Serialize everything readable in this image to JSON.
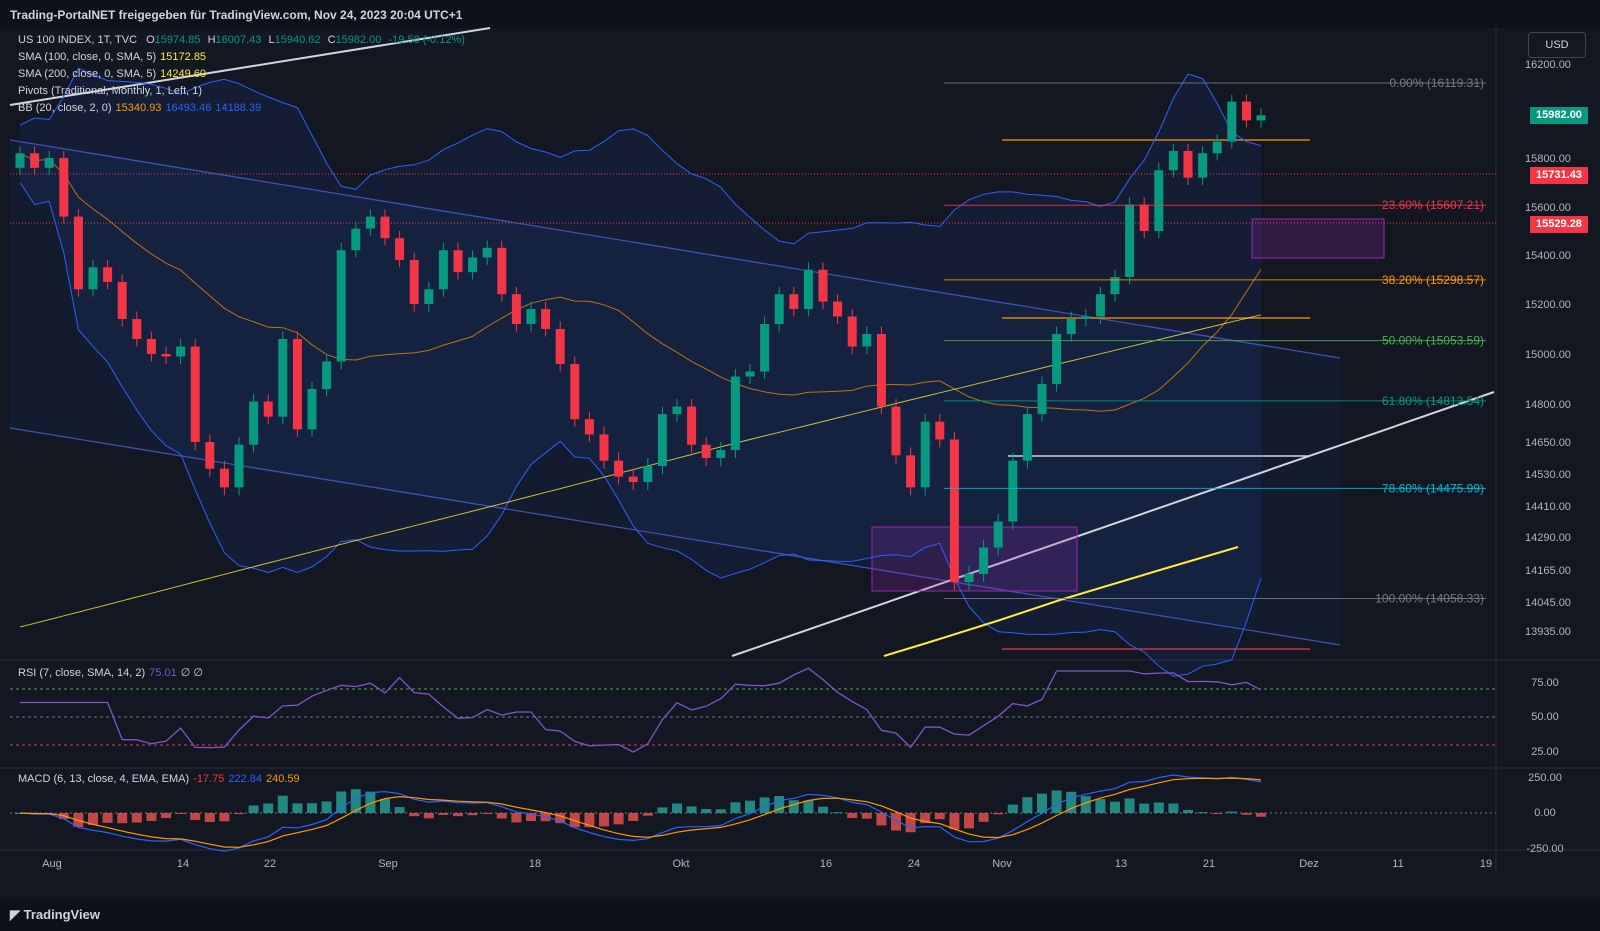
{
  "header": {
    "title": "Trading-PortalNET freigegeben für TradingView.com, Nov 24, 2023 20:04 UTC+1"
  },
  "currency": "USD",
  "footer": {
    "brand": "TradingView"
  },
  "legend": {
    "symbol": "US 100 INDEX, 1T, TVC",
    "ohlc": {
      "o_label": "O",
      "o": "15974.85",
      "h_label": "H",
      "h": "16007.43",
      "l_label": "L",
      "l": "15940.62",
      "c_label": "C",
      "c": "15982.00",
      "chg": "-19.58 (-0.12%)"
    },
    "sma100": {
      "label": "SMA (100, close, 0, SMA, 5)",
      "value": "15172.85"
    },
    "sma200": {
      "label": "SMA (200, close, 0, SMA, 5)",
      "value": "14249.60"
    },
    "pivots": {
      "label": "Pivots (Traditional, Monthly, 1, Left, 1)"
    },
    "bb": {
      "label": "BB (20, close, 2, 0)",
      "basis": "15340.93",
      "upper": "16493.46",
      "lower": "14188.39"
    },
    "rsi": {
      "label": "RSI (7, close, SMA, 14, 2)",
      "value": "75.01",
      "extra": "∅ ∅"
    },
    "macd": {
      "label": "MACD (6, 13, close, 4, EMA, EMA)",
      "hist": "-17.75",
      "macd": "222.84",
      "signal": "240.59"
    }
  },
  "price_tags": [
    {
      "label": "15982.00",
      "price": 15982,
      "color": "#089981"
    },
    {
      "label": "15731.43",
      "price": 15731.43,
      "color": "#f23645"
    },
    {
      "label": "15529.28",
      "price": 15529.28,
      "color": "#f23645"
    }
  ],
  "chart_data": {
    "type": "candlestick",
    "symbol": "US 100 INDEX",
    "price_axis": {
      "ticks": [
        "16200.00",
        "15800.00",
        "15600.00",
        "15400.00",
        "15200.00",
        "15000.00",
        "14800.00",
        "14650.00",
        "14530.00",
        "14410.00",
        "14290.00",
        "14165.00",
        "14045.00",
        "13935.00"
      ],
      "tick_values": [
        16200,
        15800,
        15600,
        15400,
        15200,
        15000,
        14800,
        14650,
        14530,
        14410,
        14290,
        14165,
        14045,
        13935
      ]
    },
    "time_axis": {
      "labels": [
        "Aug",
        "14",
        "22",
        "Sep",
        "18",
        "Okt",
        "16",
        "24",
        "Nov",
        "13",
        "21",
        "Dez",
        "11",
        "19"
      ]
    },
    "fibonacci": [
      {
        "label": "0.00% (16119.31)",
        "price": 16119.31,
        "color": "#787b86"
      },
      {
        "label": "23.60% (15607.21)",
        "price": 15607.21,
        "color": "#f23645"
      },
      {
        "label": "38.20% (15298.57)",
        "price": 15298.57,
        "color": "#ff9800"
      },
      {
        "label": "50.00% (15053.59)",
        "price": 15053.59,
        "color": "#4caf50"
      },
      {
        "label": "61.80% (14812.54)",
        "price": 14812.54,
        "color": "#089981"
      },
      {
        "label": "78.60% (14475.99)",
        "price": 14475.99,
        "color": "#00bcd4"
      },
      {
        "label": "100.00% (14058.33)",
        "price": 14058.33,
        "color": "#787b86"
      }
    ],
    "rsi_axis": [
      "75.00",
      "50.00",
      "25.00"
    ],
    "macd_axis": [
      "250.00",
      "0.00",
      "-250.00"
    ]
  }
}
